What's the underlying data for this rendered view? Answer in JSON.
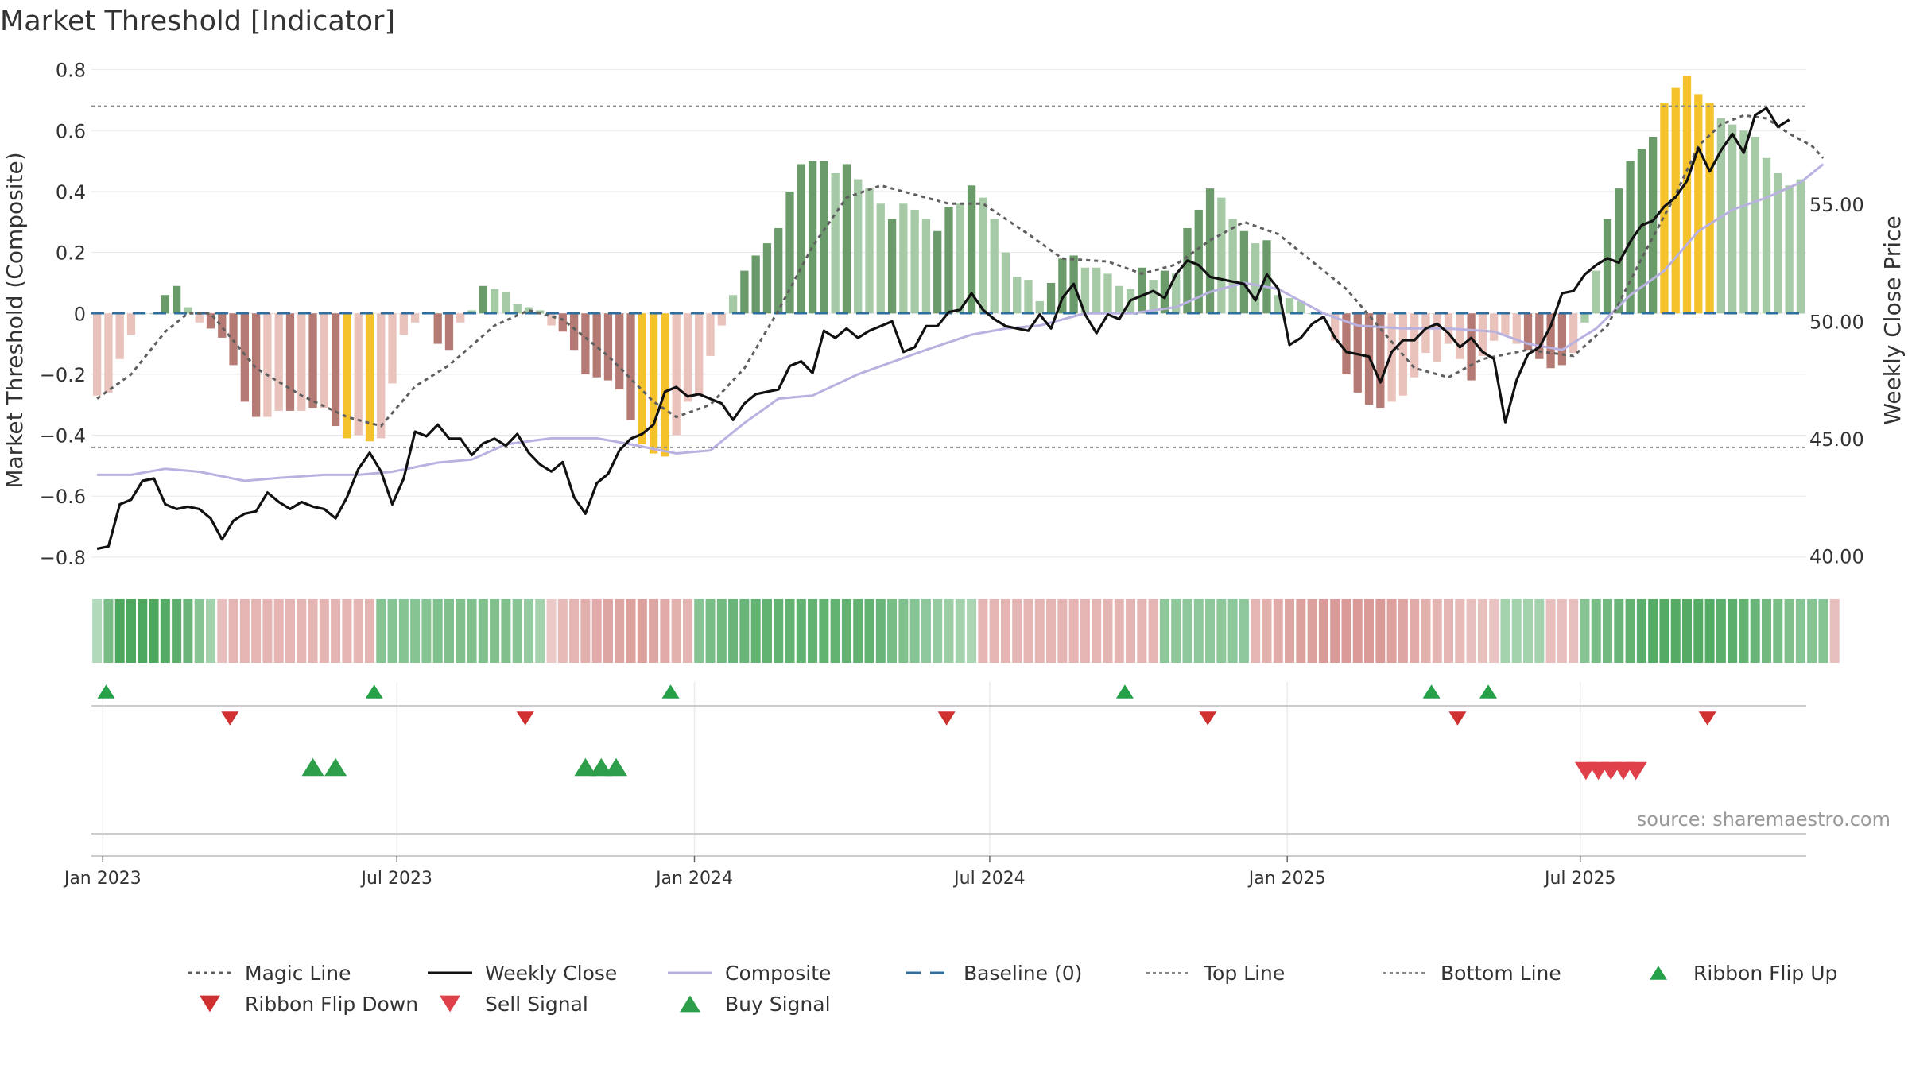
{
  "chart_data": {
    "type": "bar",
    "title": "Market Threshold [Indicator]",
    "ylabel": "Market Threshold (Composite)",
    "y2label": "Weekly Close Price",
    "ylim": [
      -0.85,
      0.82
    ],
    "y2lim": [
      39.3,
      61.0
    ],
    "yticks": [
      0.8,
      0.6,
      0.4,
      0.2,
      0,
      -0.2,
      -0.4,
      -0.6,
      -0.8
    ],
    "ytick_labels": [
      "0.8",
      "0.6",
      "0.4",
      "0.2",
      "0",
      "−0.2",
      "−0.4",
      "−0.6",
      "−0.8"
    ],
    "y2ticks": [
      55,
      50,
      45,
      40
    ],
    "y2tick_labels": [
      "55.00",
      "50.00",
      "45.00",
      "40.00"
    ],
    "xticks": [
      0.5,
      26.4,
      52.6,
      78.6,
      104.8,
      130.6
    ],
    "xtick_labels": [
      "Jan 2023",
      "Jul 2023",
      "Jan 2024",
      "Jul 2024",
      "Jan 2025",
      "Jul 2025"
    ],
    "top_line": 0.68,
    "bottom_line": -0.44,
    "grid": true,
    "source": "source: sharemaestro.com",
    "composite": [
      -0.27,
      -0.26,
      -0.15,
      -0.07,
      0,
      0,
      0.06,
      0.09,
      0.02,
      -0.03,
      -0.05,
      -0.08,
      -0.17,
      -0.29,
      -0.34,
      -0.34,
      -0.32,
      -0.32,
      -0.32,
      -0.31,
      -0.31,
      -0.37,
      -0.41,
      -0.4,
      -0.42,
      -0.41,
      -0.23,
      -0.07,
      -0.03,
      0,
      -0.1,
      -0.12,
      -0.03,
      0.01,
      0.09,
      0.08,
      0.07,
      0.03,
      0.02,
      0.01,
      -0.04,
      -0.06,
      -0.12,
      -0.2,
      -0.21,
      -0.22,
      -0.25,
      -0.35,
      -0.43,
      -0.46,
      -0.47,
      -0.4,
      -0.29,
      -0.27,
      -0.14,
      -0.04,
      0.06,
      0.14,
      0.19,
      0.23,
      0.28,
      0.4,
      0.49,
      0.5,
      0.5,
      0.46,
      0.49,
      0.44,
      0.41,
      0.36,
      0.31,
      0.36,
      0.34,
      0.31,
      0.27,
      0.35,
      0.36,
      0.42,
      0.38,
      0.31,
      0.2,
      0.12,
      0.11,
      0.04,
      0.1,
      0.18,
      0.19,
      0.15,
      0.15,
      0.13,
      0.09,
      0.08,
      0.15,
      0.11,
      0.14,
      0.13,
      0.28,
      0.34,
      0.41,
      0.38,
      0.31,
      0.27,
      0.23,
      0.24,
      0.06,
      0.05,
      0.04,
      0,
      0,
      -0.09,
      -0.2,
      -0.26,
      -0.3,
      -0.31,
      -0.29,
      -0.27,
      -0.21,
      -0.13,
      -0.16,
      -0.1,
      -0.15,
      -0.22,
      -0.14,
      -0.09,
      -0.07,
      -0.1,
      -0.12,
      -0.15,
      -0.18,
      -0.17,
      -0.13,
      -0.03,
      0.14,
      0.31,
      0.41,
      0.5,
      0.54,
      0.58,
      0.69,
      0.74,
      0.78,
      0.72,
      0.69,
      0.64,
      0.62,
      0.6,
      0.58,
      0.51,
      0.46,
      0.42,
      0.44
    ],
    "bar_colors": [
      "#e9c2bc",
      "#e9c2bc",
      "#e9c2bc",
      "#e9c2bc",
      "#a6c9a6",
      "#a6c9a6",
      "#6b9b6b",
      "#6b9b6b",
      "#a6c9a6",
      "#e9c2bc",
      "#b57a73",
      "#b57a73",
      "#b57a73",
      "#b57a73",
      "#b57a73",
      "#e9c2bc",
      "#e9c2bc",
      "#b57a73",
      "#e9c2bc",
      "#b57a73",
      "#e9c2bc",
      "#b57a73",
      "#f4c22b",
      "#e9c2bc",
      "#f4c22b",
      "#e9c2bc",
      "#e9c2bc",
      "#e9c2bc",
      "#e9c2bc",
      "#e9c2bc",
      "#b57a73",
      "#b57a73",
      "#e9c2bc",
      "#a6c9a6",
      "#6b9b6b",
      "#a6c9a6",
      "#a6c9a6",
      "#a6c9a6",
      "#a6c9a6",
      "#a6c9a6",
      "#e9c2bc",
      "#b57a73",
      "#b57a73",
      "#b57a73",
      "#b57a73",
      "#b57a73",
      "#b57a73",
      "#b57a73",
      "#f4c22b",
      "#f4c22b",
      "#f4c22b",
      "#e9c2bc",
      "#e9c2bc",
      "#e9c2bc",
      "#e9c2bc",
      "#e9c2bc",
      "#a6c9a6",
      "#6b9b6b",
      "#6b9b6b",
      "#6b9b6b",
      "#6b9b6b",
      "#6b9b6b",
      "#6b9b6b",
      "#6b9b6b",
      "#6b9b6b",
      "#a6c9a6",
      "#6b9b6b",
      "#a6c9a6",
      "#a6c9a6",
      "#a6c9a6",
      "#6b9b6b",
      "#a6c9a6",
      "#a6c9a6",
      "#a6c9a6",
      "#6b9b6b",
      "#6b9b6b",
      "#a6c9a6",
      "#6b9b6b",
      "#a6c9a6",
      "#a6c9a6",
      "#a6c9a6",
      "#a6c9a6",
      "#a6c9a6",
      "#a6c9a6",
      "#6b9b6b",
      "#6b9b6b",
      "#6b9b6b",
      "#a6c9a6",
      "#a6c9a6",
      "#a6c9a6",
      "#a6c9a6",
      "#a6c9a6",
      "#6b9b6b",
      "#a6c9a6",
      "#6b9b6b",
      "#a6c9a6",
      "#6b9b6b",
      "#6b9b6b",
      "#6b9b6b",
      "#a6c9a6",
      "#a6c9a6",
      "#6b9b6b",
      "#a6c9a6",
      "#6b9b6b",
      "#a6c9a6",
      "#a6c9a6",
      "#a6c9a6",
      "#a6c9a6",
      "#a6c9a6",
      "#e9c2bc",
      "#b57a73",
      "#b57a73",
      "#b57a73",
      "#b57a73",
      "#e9c2bc",
      "#e9c2bc",
      "#e9c2bc",
      "#e9c2bc",
      "#e9c2bc",
      "#e9c2bc",
      "#e9c2bc",
      "#b57a73",
      "#e9c2bc",
      "#e9c2bc",
      "#e9c2bc",
      "#e9c2bc",
      "#b57a73",
      "#b57a73",
      "#b57a73",
      "#b57a73",
      "#e9c2bc",
      "#a6c9a6",
      "#a6c9a6",
      "#6b9b6b",
      "#6b9b6b",
      "#6b9b6b",
      "#6b9b6b",
      "#6b9b6b",
      "#f4c22b",
      "#f4c22b",
      "#f4c22b",
      "#f4c22b",
      "#f4c22b",
      "#a6c9a6",
      "#a6c9a6",
      "#a6c9a6",
      "#a6c9a6",
      "#a6c9a6",
      "#a6c9a6",
      "#a6c9a6",
      "#a6c9a6",
      "#6b9b6b"
    ],
    "magic_line": [
      [
        0,
        -0.28
      ],
      [
        3,
        -0.2
      ],
      [
        6,
        -0.06
      ],
      [
        8,
        0
      ],
      [
        10,
        0
      ],
      [
        14,
        -0.18
      ],
      [
        18,
        -0.27
      ],
      [
        22,
        -0.34
      ],
      [
        25,
        -0.37
      ],
      [
        28,
        -0.24
      ],
      [
        31,
        -0.17
      ],
      [
        35,
        -0.04
      ],
      [
        38,
        0.01
      ],
      [
        41,
        -0.02
      ],
      [
        45,
        -0.14
      ],
      [
        49,
        -0.29
      ],
      [
        51,
        -0.34
      ],
      [
        54,
        -0.3
      ],
      [
        57,
        -0.18
      ],
      [
        60,
        0.01
      ],
      [
        63,
        0.22
      ],
      [
        66,
        0.38
      ],
      [
        69,
        0.42
      ],
      [
        72,
        0.39
      ],
      [
        75,
        0.36
      ],
      [
        78,
        0.36
      ],
      [
        82,
        0.26
      ],
      [
        85,
        0.18
      ],
      [
        89,
        0.17
      ],
      [
        92,
        0.13
      ],
      [
        95,
        0.16
      ],
      [
        98,
        0.24
      ],
      [
        101,
        0.3
      ],
      [
        104,
        0.26
      ],
      [
        107,
        0.17
      ],
      [
        110,
        0.08
      ],
      [
        113,
        -0.05
      ],
      [
        116,
        -0.18
      ],
      [
        119,
        -0.21
      ],
      [
        122,
        -0.15
      ],
      [
        126,
        -0.12
      ],
      [
        130,
        -0.14
      ],
      [
        133,
        -0.04
      ],
      [
        136,
        0.18
      ],
      [
        139,
        0.39
      ],
      [
        141,
        0.55
      ],
      [
        143,
        0.62
      ],
      [
        145,
        0.65
      ],
      [
        147,
        0.64
      ],
      [
        149,
        0.59
      ],
      [
        151,
        0.55
      ],
      [
        152,
        0.51
      ]
    ],
    "composite_line": [
      [
        0,
        -0.53
      ],
      [
        3,
        -0.53
      ],
      [
        6,
        -0.51
      ],
      [
        9,
        -0.52
      ],
      [
        13,
        -0.55
      ],
      [
        16,
        -0.54
      ],
      [
        20,
        -0.53
      ],
      [
        23,
        -0.53
      ],
      [
        26,
        -0.52
      ],
      [
        30,
        -0.49
      ],
      [
        33,
        -0.48
      ],
      [
        36,
        -0.43
      ],
      [
        40,
        -0.41
      ],
      [
        44,
        -0.41
      ],
      [
        47,
        -0.43
      ],
      [
        51,
        -0.46
      ],
      [
        54,
        -0.45
      ],
      [
        57,
        -0.36
      ],
      [
        60,
        -0.28
      ],
      [
        63,
        -0.27
      ],
      [
        67,
        -0.2
      ],
      [
        70,
        -0.16
      ],
      [
        73,
        -0.12
      ],
      [
        77,
        -0.07
      ],
      [
        80,
        -0.05
      ],
      [
        83,
        -0.04
      ],
      [
        87,
        0
      ],
      [
        91,
        0
      ],
      [
        95,
        0.02
      ],
      [
        98,
        0.07
      ],
      [
        101,
        0.1
      ],
      [
        104,
        0.08
      ],
      [
        108,
        0
      ],
      [
        111,
        -0.04
      ],
      [
        115,
        -0.05
      ],
      [
        119,
        -0.05
      ],
      [
        123,
        -0.06
      ],
      [
        126,
        -0.1
      ],
      [
        129,
        -0.12
      ],
      [
        132,
        -0.05
      ],
      [
        135,
        0.06
      ],
      [
        138,
        0.14
      ],
      [
        141,
        0.27
      ],
      [
        144,
        0.34
      ],
      [
        147,
        0.38
      ],
      [
        150,
        0.43
      ],
      [
        152,
        0.49
      ]
    ],
    "weekly_close": [
      40.3,
      40.4,
      42.2,
      42.4,
      43.2,
      43.3,
      42.2,
      42.0,
      42.1,
      42.0,
      41.6,
      40.7,
      41.5,
      41.8,
      41.9,
      42.7,
      42.3,
      42.0,
      42.3,
      42.1,
      42.0,
      41.6,
      42.5,
      43.7,
      44.4,
      43.6,
      42.2,
      43.3,
      45.3,
      45.1,
      45.6,
      45.0,
      45.0,
      44.3,
      44.8,
      45.0,
      44.7,
      45.2,
      44.4,
      43.9,
      43.6,
      44.0,
      42.5,
      41.8,
      43.1,
      43.5,
      44.5,
      45.0,
      45.2,
      45.6,
      47.0,
      47.2,
      46.8,
      46.9,
      46.7,
      46.5,
      45.8,
      46.5,
      46.9,
      47.0,
      47.1,
      48.1,
      48.3,
      47.8,
      49.6,
      49.3,
      49.7,
      49.3,
      49.6,
      49.8,
      50.0,
      48.7,
      48.9,
      49.8,
      49.8,
      50.4,
      50.5,
      51.2,
      50.5,
      50.1,
      49.8,
      49.7,
      49.6,
      50.3,
      49.7,
      51.0,
      51.6,
      50.3,
      49.5,
      50.3,
      50.1,
      50.9,
      51.1,
      51.3,
      51.0,
      52.0,
      52.6,
      52.4,
      51.9,
      51.8,
      51.7,
      51.6,
      50.9,
      52.0,
      51.4,
      49.0,
      49.3,
      49.9,
      50.2,
      49.3,
      48.7,
      48.6,
      48.5,
      47.4,
      48.7,
      49.2,
      49.2,
      49.7,
      49.9,
      49.5,
      48.9,
      49.3,
      48.7,
      48.4,
      45.7,
      47.5,
      48.6,
      48.9,
      49.8,
      51.2,
      51.3,
      52.0,
      52.4,
      52.7,
      52.5,
      53.4,
      54.1,
      54.3,
      54.9,
      55.3,
      56.0,
      57.4,
      56.4,
      57.3,
      58.0,
      57.2,
      58.8,
      59.1,
      58.3,
      58.6
    ],
    "ribbon": [
      0.2,
      0.6,
      0.9,
      0.9,
      0.9,
      0.9,
      0.85,
      0.8,
      0.7,
      0.5,
      0.3,
      -0.3,
      -0.4,
      -0.4,
      -0.4,
      -0.4,
      -0.4,
      -0.4,
      -0.4,
      -0.4,
      -0.4,
      -0.4,
      -0.4,
      -0.4,
      -0.4,
      0.5,
      0.5,
      0.5,
      0.5,
      0.5,
      0.55,
      0.55,
      0.55,
      0.55,
      0.55,
      0.55,
      0.55,
      0.5,
      0.4,
      0.3,
      -0.2,
      -0.35,
      -0.4,
      -0.45,
      -0.5,
      -0.55,
      -0.55,
      -0.6,
      -0.6,
      -0.55,
      -0.5,
      -0.45,
      -0.4,
      0.5,
      0.6,
      0.65,
      0.7,
      0.7,
      0.75,
      0.75,
      0.75,
      0.75,
      0.75,
      0.75,
      0.75,
      0.75,
      0.75,
      0.75,
      0.75,
      0.7,
      0.6,
      0.55,
      0.5,
      0.45,
      0.4,
      0.35,
      0.3,
      0.25,
      -0.4,
      -0.4,
      -0.4,
      -0.4,
      -0.4,
      -0.4,
      -0.4,
      -0.4,
      -0.4,
      -0.4,
      -0.4,
      -0.4,
      -0.4,
      -0.4,
      -0.4,
      -0.4,
      0.45,
      0.45,
      0.45,
      0.45,
      0.45,
      0.45,
      0.45,
      0.45,
      -0.4,
      -0.45,
      -0.5,
      -0.55,
      -0.6,
      -0.6,
      -0.65,
      -0.65,
      -0.65,
      -0.65,
      -0.65,
      -0.65,
      -0.6,
      -0.55,
      -0.5,
      -0.45,
      -0.4,
      -0.4,
      -0.35,
      -0.3,
      -0.3,
      -0.25,
      0.3,
      0.3,
      0.3,
      0.3,
      -0.3,
      -0.3,
      -0.3,
      0.5,
      0.6,
      0.65,
      0.7,
      0.75,
      0.8,
      0.85,
      0.85,
      0.85,
      0.85,
      0.85,
      0.85,
      0.8,
      0.8,
      0.75,
      0.7,
      0.65,
      0.6,
      0.55,
      0.5,
      0.5,
      0.5,
      -0.3
    ],
    "ribbon_flip_up": [
      0.8,
      24.4,
      50.5,
      90.5,
      117.5,
      122.5
    ],
    "ribbon_flip_down": [
      11.7,
      37.7,
      74.8,
      97.8,
      119.8,
      141.8
    ],
    "buy_signal": [
      19.0,
      21.0,
      43.0,
      44.4,
      45.7
    ],
    "sell_signal": [
      131.1,
      132.2,
      133.3,
      134.4,
      135.5
    ],
    "legend": [
      {
        "label": "Magic Line",
        "symbol": "dotted",
        "color": "#5f5f5f"
      },
      {
        "label": "Weekly Close",
        "symbol": "solid",
        "color": "#111111"
      },
      {
        "label": "Composite",
        "symbol": "solid",
        "color": "#b9b2e0"
      },
      {
        "label": "Baseline (0)",
        "symbol": "dashed",
        "color": "#2f6f9f"
      },
      {
        "label": "Top Line",
        "symbol": "dotted-light",
        "color": "#888888"
      },
      {
        "label": "Bottom Line",
        "symbol": "dotted-light",
        "color": "#888888"
      },
      {
        "label": "Ribbon Flip Up",
        "symbol": "triangle-up",
        "color": "#27a04a"
      },
      {
        "label": "Ribbon Flip Down",
        "symbol": "triangle-down",
        "color": "#d03030"
      },
      {
        "label": "Sell Signal",
        "symbol": "triangle-down",
        "color": "#e0404a"
      },
      {
        "label": "Buy Signal",
        "symbol": "triangle-up",
        "color": "#2f9e4a"
      }
    ]
  }
}
